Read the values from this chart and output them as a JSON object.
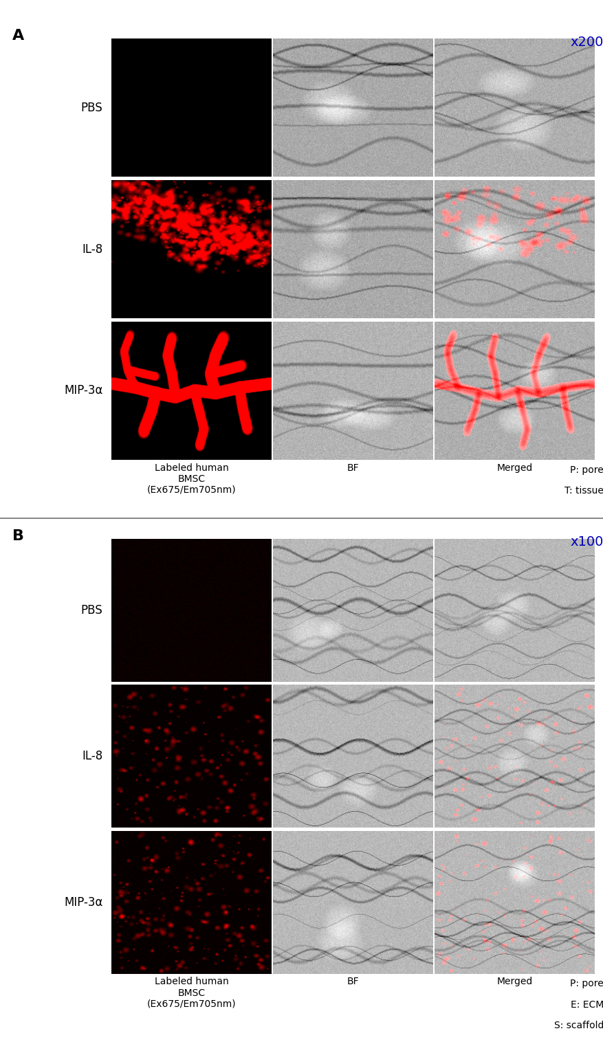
{
  "fig_width": 8.78,
  "fig_height": 15.16,
  "bg_color": "#ffffff",
  "panel_A_label": "A",
  "panel_B_label": "B",
  "magnification_A": "x200",
  "magnification_B": "x100",
  "mag_color": "#0000bb",
  "row_labels_A": [
    "PBS",
    "IL-8",
    "MIP-3α"
  ],
  "row_labels_B": [
    "PBS",
    "IL-8",
    "MIP-3α"
  ],
  "col_labels_A": [
    "Labeled human\nBMSC\n(Ex675/Em705nm)",
    "BF",
    "Merged"
  ],
  "col_labels_B": [
    "Labeled human\nBMSC\n(Ex675/Em705nm)",
    "BF",
    "Merged"
  ],
  "legend_A": [
    "P: pore",
    "T: tissue"
  ],
  "legend_B": [
    "P: pore",
    "E: ECM",
    "S: scaffold"
  ],
  "label_fontsize": 12,
  "col_label_fontsize": 10,
  "panel_label_fontsize": 16,
  "mag_fontsize": 14,
  "legend_fontsize": 10,
  "annot_fontsize": 9
}
